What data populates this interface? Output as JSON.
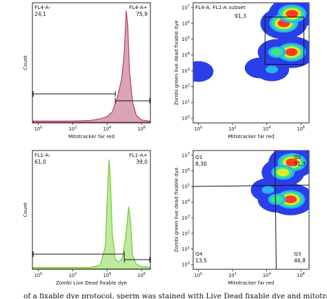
{
  "caption": "of a fixable dye protocol, sperm was stained with Live Dead fixable dye and mitotracker",
  "chart_data": [
    {
      "id": "mito-histogram",
      "type": "area",
      "xlabel": "Mitotracker far red",
      "ylabel": "Count",
      "xscale": "log",
      "xlim": [
        0.5,
        3000000
      ],
      "xticks": [
        {
          "base": "10",
          "exp": "0",
          "value": 1
        },
        {
          "base": "10",
          "exp": "2",
          "value": 100
        },
        {
          "base": "10",
          "exp": "4",
          "value": 10000
        },
        {
          "base": "10",
          "exp": "6",
          "value": 1000000
        }
      ],
      "ylim": [
        0,
        1
      ],
      "gates": [
        {
          "name": "FL4-A-",
          "value": "24,1",
          "range": [
            0.5,
            30000
          ]
        },
        {
          "name": "FL4-A+",
          "value": "75,9",
          "range": [
            30000,
            3000000
          ]
        }
      ],
      "color": "#b2326a",
      "fill": "#d9a3b8",
      "curve": {
        "x": [
          0.5,
          1,
          10,
          100,
          1000,
          4000,
          10000,
          20000,
          40000,
          70000,
          100000,
          130000,
          160000,
          200000,
          300000,
          500000,
          1000000,
          3000000
        ],
        "y": [
          0.01,
          0.01,
          0.01,
          0.01,
          0.015,
          0.03,
          0.05,
          0.09,
          0.22,
          0.38,
          0.62,
          0.98,
          0.84,
          0.45,
          0.18,
          0.06,
          0.02,
          0.01
        ]
      }
    },
    {
      "id": "subset-density",
      "type": "heatmap",
      "xlabel": "Mitotracker far red",
      "ylabel": "Zombi green live dead fixable dye",
      "xscale": "log",
      "yscale": "log",
      "xlim": [
        0.5,
        3000000
      ],
      "ylim": [
        0.5,
        20000000
      ],
      "xticks": [
        {
          "base": "10",
          "exp": "0",
          "value": 1
        },
        {
          "base": "10",
          "exp": "2",
          "value": 100
        },
        {
          "base": "10",
          "exp": "4",
          "value": 10000
        },
        {
          "base": "10",
          "exp": "6",
          "value": 1000000
        }
      ],
      "yticks": [
        {
          "base": "10",
          "exp": "0",
          "value": 1
        },
        {
          "base": "10",
          "exp": "1",
          "value": 10
        },
        {
          "base": "10",
          "exp": "2",
          "value": 100
        },
        {
          "base": "10",
          "exp": "3",
          "value": 1000
        },
        {
          "base": "10",
          "exp": "4",
          "value": 10000
        },
        {
          "base": "10",
          "exp": "5",
          "value": 100000
        },
        {
          "base": "10",
          "exp": "6",
          "value": 1000000
        },
        {
          "base": "10",
          "exp": "7",
          "value": 10000000
        }
      ],
      "gate": {
        "name": "FL4-A, FL1-A subset",
        "value": "91,3",
        "x": [
          8000,
          1500000
        ],
        "y": [
          2500,
          2500000
        ]
      },
      "density_levels": [
        "#2a3fe8",
        "#27b3f5",
        "#3ee08a",
        "#d8f02a",
        "#ff3b1e"
      ],
      "clusters": [
        {
          "x": 100000,
          "y": 1000000,
          "level": 4
        },
        {
          "x": 300000,
          "y": 4000000,
          "level": 4
        },
        {
          "x": 280000,
          "y": 15000,
          "level": 4
        },
        {
          "x": 40000,
          "y": 15000,
          "level": 2
        },
        {
          "x": 20000,
          "y": 1200,
          "level": 1
        },
        {
          "x": 4000,
          "y": 1500,
          "level": 0
        },
        {
          "x": 1,
          "y": 900,
          "level": 0
        }
      ]
    },
    {
      "id": "live-dead-histogram",
      "type": "area",
      "xlabel": "Zombi Live Dead fixable dye",
      "ylabel": "Count",
      "xscale": "log",
      "xlim": [
        0.5,
        3000000
      ],
      "xticks": [
        {
          "base": "10",
          "exp": "0",
          "value": 1
        },
        {
          "base": "10",
          "exp": "2",
          "value": 100
        },
        {
          "base": "10",
          "exp": "4",
          "value": 10000
        },
        {
          "base": "10",
          "exp": "6",
          "value": 1000000
        }
      ],
      "ylim": [
        0,
        1
      ],
      "gates": [
        {
          "name": "FL1-A-",
          "value": "61,0",
          "range": [
            0.5,
            100000
          ]
        },
        {
          "name": "FL1-A+",
          "value": "39,0",
          "range": [
            100000,
            3000000
          ]
        }
      ],
      "color": "#6cc427",
      "fill": "#bfe99c",
      "curve": {
        "x": [
          0.5,
          1,
          10,
          100,
          1000,
          4000,
          8000,
          10000,
          13000,
          16000,
          20000,
          30000,
          50000,
          80000,
          120000,
          180000,
          230000,
          300000,
          500000,
          1000000,
          3000000
        ],
        "y": [
          0.01,
          0.01,
          0.01,
          0.01,
          0.01,
          0.03,
          0.2,
          0.6,
          0.97,
          0.75,
          0.32,
          0.08,
          0.06,
          0.1,
          0.28,
          0.55,
          0.42,
          0.12,
          0.04,
          0.02,
          0.01
        ]
      }
    },
    {
      "id": "quadrant-density",
      "type": "heatmap",
      "xlabel": "Mitotracker far red",
      "ylabel": "Zombi green live dead fixable dye",
      "xscale": "log",
      "yscale": "log",
      "xlim": [
        0.5,
        3000000
      ],
      "ylim": [
        0.5,
        20000000
      ],
      "xticks": [
        {
          "base": "10",
          "exp": "0",
          "value": 1
        },
        {
          "base": "10",
          "exp": "2",
          "value": 100
        },
        {
          "base": "10",
          "exp": "4",
          "value": 10000
        },
        {
          "base": "10",
          "exp": "6",
          "value": 1000000
        }
      ],
      "yticks": [
        {
          "base": "10",
          "exp": "0",
          "value": 1
        },
        {
          "base": "10",
          "exp": "1",
          "value": 10
        },
        {
          "base": "10",
          "exp": "2",
          "value": 100
        },
        {
          "base": "10",
          "exp": "3",
          "value": 1000
        },
        {
          "base": "10",
          "exp": "4",
          "value": 10000
        },
        {
          "base": "10",
          "exp": "5",
          "value": 100000
        },
        {
          "base": "10",
          "exp": "6",
          "value": 1000000
        },
        {
          "base": "10",
          "exp": "7",
          "value": 10000000
        }
      ],
      "quadrant_split": {
        "x": 30000,
        "y": 100000
      },
      "quadrants": [
        {
          "name": "Q1",
          "value": "8,30",
          "position": "top-left"
        },
        {
          "name": "Q2",
          "value": "31,3",
          "position": "top-right"
        },
        {
          "name": "Q3",
          "value": "46,8",
          "position": "bottom-right"
        },
        {
          "name": "Q4",
          "value": "13,5",
          "position": "bottom-left"
        }
      ],
      "density_levels": [
        "#2a3fe8",
        "#27b3f5",
        "#3ee08a",
        "#d8f02a",
        "#ff3b1e"
      ],
      "clusters": [
        {
          "x": 300000,
          "y": 3500000,
          "level": 4
        },
        {
          "x": 90000,
          "y": 800000,
          "level": 3
        },
        {
          "x": 250000,
          "y": 15000,
          "level": 4
        },
        {
          "x": 40000,
          "y": 15000,
          "level": 2
        },
        {
          "x": 12000,
          "y": 60000,
          "level": 1
        }
      ]
    }
  ]
}
